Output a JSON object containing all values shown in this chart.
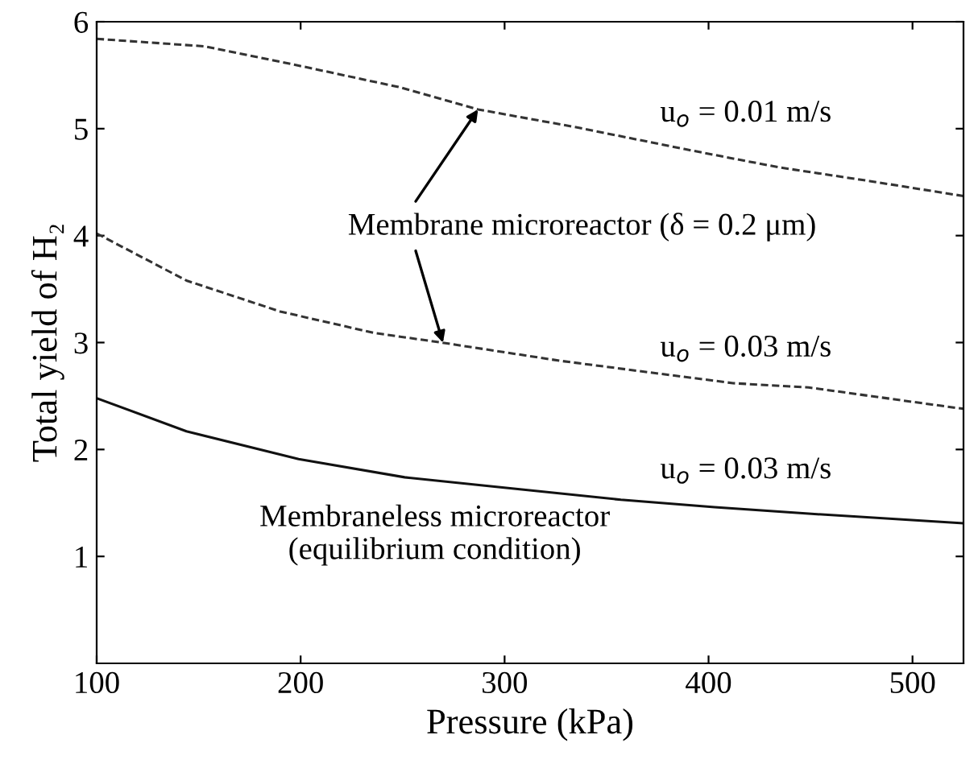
{
  "chart_data": {
    "type": "line",
    "xlabel": "Pressure (kPa)",
    "ylabel": "Total yield of H₂",
    "series": [
      {
        "color": "#333333",
        "line_style": "dashed",
        "x": [
          100,
          153,
          199,
          248,
          287,
          336,
          388,
          434,
          479,
          525
        ],
        "values": [
          5.84,
          5.77,
          5.59,
          5.39,
          5.18,
          5.01,
          4.81,
          4.64,
          4.51,
          4.37
        ]
      },
      {
        "color": "#333333",
        "line_style": "dashed",
        "x": [
          100,
          144,
          190,
          236,
          269,
          327,
          412,
          449,
          525
        ],
        "values": [
          4.02,
          3.58,
          3.29,
          3.09,
          3.0,
          2.83,
          2.62,
          2.58,
          2.38
        ]
      },
      {
        "color": "#111111",
        "line_style": "solid",
        "x": [
          100,
          144,
          199,
          251,
          296,
          357,
          403,
          449,
          525
        ],
        "values": [
          2.48,
          2.17,
          1.91,
          1.74,
          1.65,
          1.53,
          1.46,
          1.4,
          1.31
        ]
      }
    ],
    "annotations": [
      "u$_{o}$ = 0.01 m/s",
      {
        "text": "Membrane microreactor (δ = 0.2 μm)",
        "x": 287,
        "y": 5.18
      },
      "u$_{o}$ = 0.03 m/s",
      "u$_{o}$ = 0.03 m/s",
      "Membraneless microreactor\n(equilibrium condition)"
    ],
    "xlim": [
      100,
      525
    ],
    "ylim": [
      0,
      6
    ],
    "xticks": [
      100,
      200,
      300,
      400,
      500
    ],
    "yticks": [
      1,
      2,
      3,
      4,
      5,
      6
    ],
    "grid": false,
    "legend": false,
    "marker": "none"
  }
}
